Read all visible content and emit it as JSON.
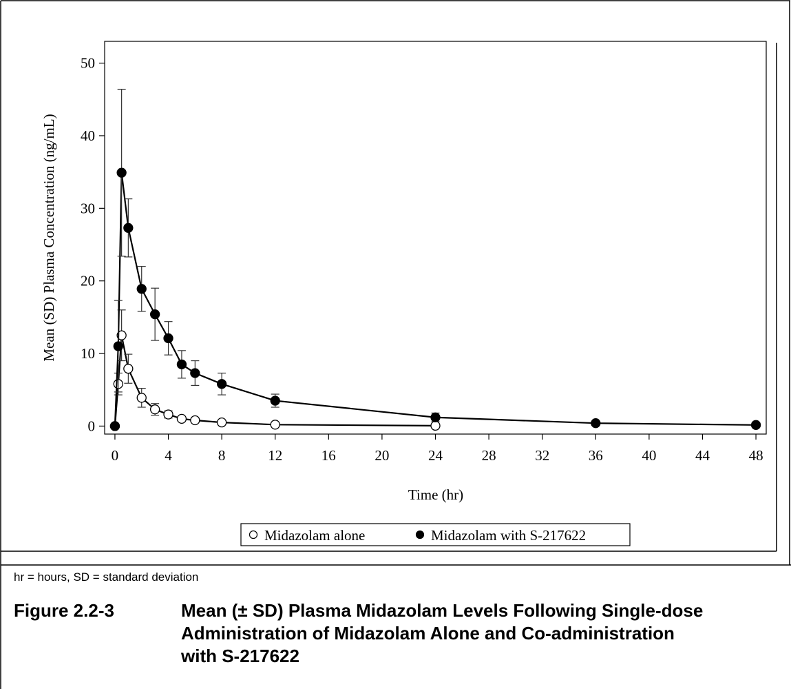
{
  "chart_data": {
    "type": "line",
    "ylabel": "Mean (SD) Plasma Concentration (ng/mL)",
    "xlabel": "Time (hr)",
    "xlim": [
      -0.77,
      48.77
    ],
    "ylim": [
      -1.1,
      53
    ],
    "xticks": [
      0,
      4,
      8,
      12,
      16,
      20,
      24,
      28,
      32,
      36,
      40,
      44,
      48
    ],
    "yticks": [
      0,
      10,
      20,
      30,
      40,
      50
    ],
    "grid": false,
    "series": [
      {
        "name": "Midazolam alone",
        "marker": "open",
        "color": "#000000",
        "x": [
          0,
          0.25,
          0.5,
          1,
          2,
          3,
          4,
          5,
          6,
          8,
          12,
          24
        ],
        "values": [
          0,
          5.8,
          12.5,
          7.9,
          3.9,
          2.3,
          1.6,
          1.0,
          0.8,
          0.5,
          0.2,
          0.05
        ],
        "errors": [
          0,
          1.5,
          3.5,
          2.0,
          1.3,
          0.8,
          0.5,
          0.3,
          0.2,
          0.2,
          0.1,
          0.05
        ]
      },
      {
        "name": "Midazolam with S-217622",
        "marker": "filled",
        "color": "#000000",
        "x": [
          0,
          0.25,
          0.5,
          1,
          2,
          3,
          4,
          5,
          6,
          8,
          12,
          24,
          36,
          48
        ],
        "values": [
          0,
          11.0,
          34.9,
          27.3,
          18.9,
          15.4,
          12.1,
          8.5,
          7.3,
          5.8,
          3.5,
          1.2,
          0.4,
          0.15
        ],
        "errors": [
          0,
          6.3,
          11.5,
          4.0,
          3.1,
          3.6,
          2.3,
          1.9,
          1.7,
          1.5,
          0.9,
          0.6,
          0.2,
          0.1
        ]
      }
    ]
  },
  "footnote": "hr = hours, SD = standard deviation",
  "caption": {
    "label": "Figure 2.2-3",
    "text": "Mean (± SD) Plasma Midazolam Levels Following Single-dose Administration of Midazolam Alone and Co-administration with S-217622"
  }
}
